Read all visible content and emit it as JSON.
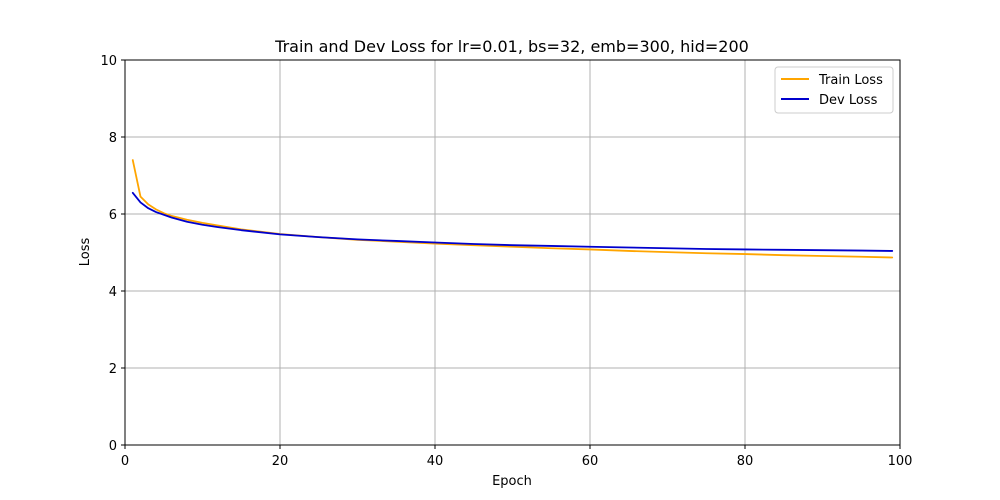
{
  "chart_data": {
    "type": "line",
    "title": "Train and Dev Loss for lr=0.01, bs=32, emb=300, hid=200",
    "xlabel": "Epoch",
    "ylabel": "Loss",
    "xlim": [
      0,
      100
    ],
    "ylim": [
      0,
      10
    ],
    "xticks": [
      0,
      20,
      40,
      60,
      80,
      100
    ],
    "yticks": [
      0,
      2,
      4,
      6,
      8,
      10
    ],
    "grid": true,
    "legend_position": "top-right",
    "series": [
      {
        "name": "Train Loss",
        "color": "#ffa500",
        "x": [
          1,
          2,
          3,
          4,
          5,
          6,
          8,
          10,
          12,
          15,
          20,
          25,
          30,
          35,
          40,
          45,
          50,
          55,
          60,
          65,
          70,
          75,
          80,
          85,
          90,
          95,
          99
        ],
        "y": [
          7.4,
          6.45,
          6.25,
          6.12,
          6.02,
          5.95,
          5.85,
          5.77,
          5.7,
          5.6,
          5.48,
          5.4,
          5.33,
          5.28,
          5.23,
          5.19,
          5.15,
          5.11,
          5.08,
          5.04,
          5.01,
          4.98,
          4.96,
          4.93,
          4.91,
          4.89,
          4.87
        ]
      },
      {
        "name": "Dev Loss",
        "color": "#0000cd",
        "x": [
          1,
          2,
          3,
          4,
          5,
          6,
          8,
          10,
          12,
          15,
          20,
          25,
          30,
          35,
          40,
          45,
          50,
          55,
          60,
          65,
          70,
          75,
          80,
          85,
          90,
          95,
          99
        ],
        "y": [
          6.55,
          6.3,
          6.15,
          6.05,
          5.98,
          5.91,
          5.8,
          5.72,
          5.66,
          5.58,
          5.47,
          5.4,
          5.34,
          5.3,
          5.26,
          5.22,
          5.19,
          5.17,
          5.15,
          5.13,
          5.11,
          5.09,
          5.08,
          5.07,
          5.06,
          5.05,
          5.04
        ]
      }
    ]
  }
}
